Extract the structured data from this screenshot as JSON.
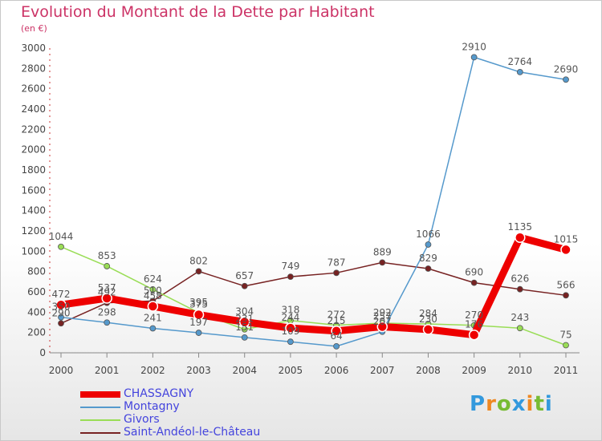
{
  "title": "Evolution du Montant de la Dette par Habitant",
  "subtitle": "(en €)",
  "logo": {
    "letters": [
      "P",
      "r",
      "o",
      "x",
      "i",
      "t",
      "i"
    ],
    "colors": [
      "#3399dd",
      "#ee8822",
      "#77bb33",
      "#3399dd",
      "#ee8822",
      "#77bb33",
      "#3399dd"
    ]
  },
  "chart_data": {
    "type": "line",
    "x": [
      "2000",
      "2001",
      "2002",
      "2003",
      "2004",
      "2005",
      "2006",
      "2007",
      "2008",
      "2009",
      "2010",
      "2011"
    ],
    "ylim": [
      0,
      3000
    ],
    "yticks": [
      "0",
      "200",
      "400",
      "600",
      "800",
      "1000",
      "1200",
      "1400",
      "1600",
      "1800",
      "2000",
      "2200",
      "2400",
      "2600",
      "2800",
      "3000"
    ],
    "grid": false,
    "legend_position": "bottom-left",
    "series": [
      {
        "name": "Saint-Andéol-le-Château",
        "color": "#772222",
        "values": [
          290,
          492,
          510,
          802,
          657,
          749,
          787,
          889,
          829,
          690,
          626,
          566
        ],
        "labels": [
          "290",
          "492",
          "510",
          "802",
          "657",
          "749",
          "787",
          "889",
          "829",
          "690",
          "626",
          "566"
        ]
      },
      {
        "name": "Givors",
        "color": "#99dd55",
        "values": [
          1044,
          853,
          624,
          395,
          231,
          318,
          272,
          292,
          284,
          270,
          243,
          75
        ],
        "labels": [
          "1044",
          "853",
          "624",
          "395",
          "231",
          "318",
          "272",
          "292",
          "284",
          "270",
          "243",
          "75"
        ]
      },
      {
        "name": "Montagny",
        "color": "#5599cc",
        "values": [
          350,
          298,
          241,
          197,
          151,
          109,
          64,
          207,
          1066,
          2910,
          2764,
          2690
        ],
        "labels": [
          "350",
          "298",
          "241",
          "197",
          "151",
          "109",
          "64",
          "207",
          "1066",
          "2910",
          "2764",
          "2690"
        ]
      },
      {
        "name": "CHASSAGNY",
        "color": "#ee0000",
        "values": [
          472,
          537,
          458,
          375,
          304,
          244,
          215,
          257,
          230,
          176,
          1135,
          1015
        ],
        "labels": [
          "472",
          "537",
          "458",
          "375",
          "304",
          "244",
          "215",
          "257",
          "230",
          "176",
          "1135",
          "1015"
        ]
      }
    ]
  },
  "legend": [
    {
      "name": "CHASSAGNY",
      "color": "#ee0000",
      "text_color": "#4444dd",
      "thickness": 8
    },
    {
      "name": "Montagny",
      "color": "#5599cc",
      "text_color": "#4444dd",
      "thickness": 2
    },
    {
      "name": "Givors",
      "color": "#99dd55",
      "text_color": "#4444dd",
      "thickness": 2
    },
    {
      "name": "Saint-Andéol-le-Château",
      "color": "#772222",
      "text_color": "#4444dd",
      "thickness": 2
    }
  ]
}
